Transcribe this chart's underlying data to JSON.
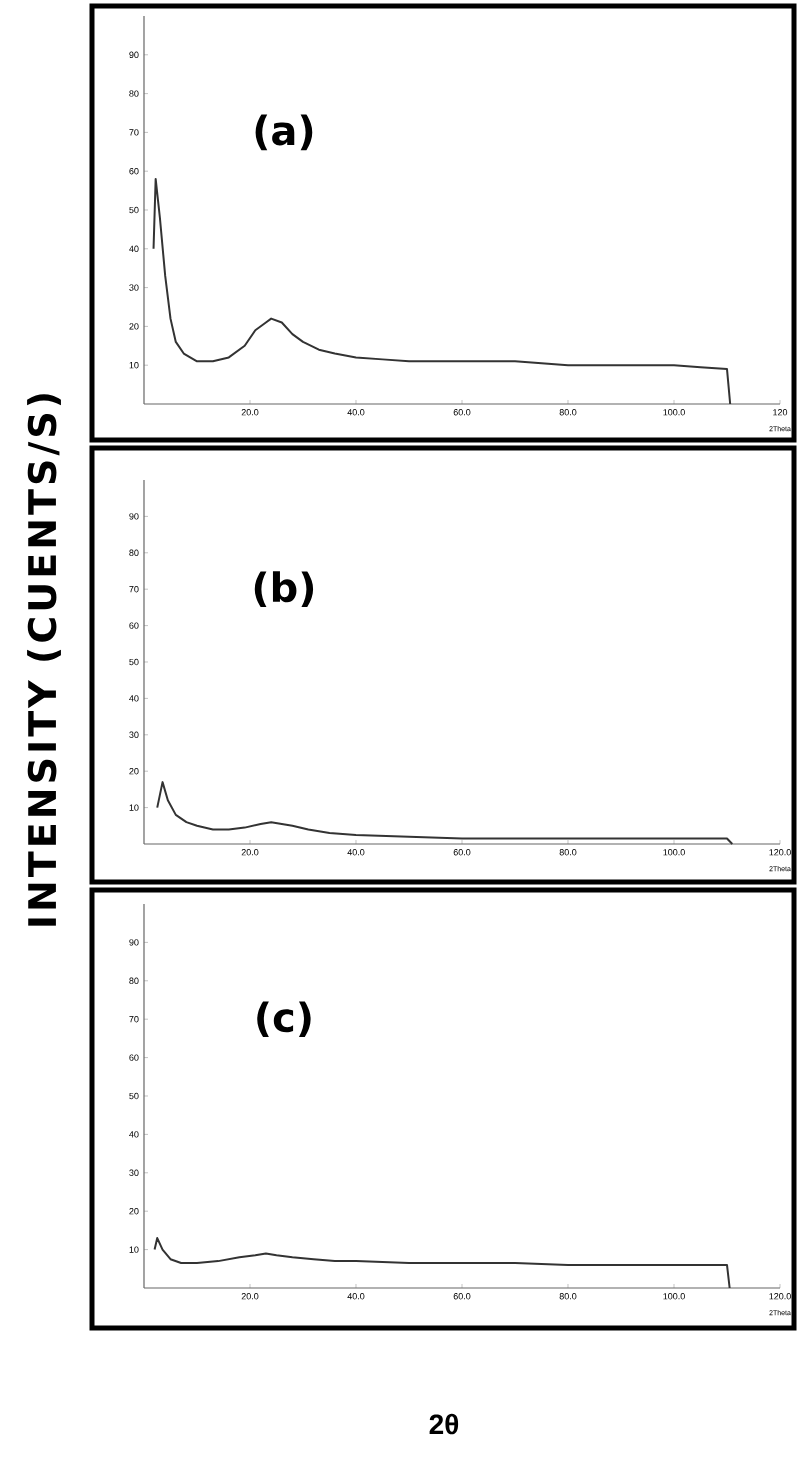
{
  "chart_data": [
    {
      "type": "line",
      "ylabel": "INTENSITY (CUENTS/S)",
      "annotations": [
        "(a)",
        "2Theta"
      ],
      "xlim": [
        0,
        120
      ],
      "ylim": [
        0,
        100
      ],
      "xticks": [
        {
          "value": 20,
          "label": "20.0"
        },
        {
          "value": 40,
          "label": "40.0"
        },
        {
          "value": 60,
          "label": "60.0"
        },
        {
          "value": 80,
          "label": "80.0"
        },
        {
          "value": 100,
          "label": "100.0"
        },
        {
          "value": 120,
          "label": "120"
        }
      ],
      "yticks": [
        10,
        20,
        30,
        40,
        50,
        60,
        70,
        80,
        90
      ],
      "color": "#333333",
      "x": [
        1.8,
        2.2,
        3,
        4,
        5,
        6,
        7.5,
        10,
        13,
        16,
        19,
        21,
        23,
        24,
        26,
        28,
        30,
        33,
        36,
        40,
        45,
        50,
        55,
        60,
        65,
        70,
        75,
        80,
        85,
        90,
        95,
        100,
        105,
        110,
        110.6
      ],
      "values": [
        40,
        58,
        48,
        33,
        22,
        16,
        13,
        11,
        11,
        12,
        15,
        19,
        21,
        22,
        21,
        18,
        16,
        14,
        13,
        12,
        11.5,
        11,
        11,
        11,
        11,
        11,
        10.5,
        10,
        10,
        10,
        10,
        10,
        9.5,
        9,
        0
      ]
    },
    {
      "type": "line",
      "annotations": [
        "(b)",
        "2Theta"
      ],
      "xlim": [
        0,
        120
      ],
      "ylim": [
        0,
        100
      ],
      "xticks": [
        {
          "value": 20,
          "label": "20.0"
        },
        {
          "value": 40,
          "label": "40.0"
        },
        {
          "value": 60,
          "label": "60.0"
        },
        {
          "value": 80,
          "label": "80.0"
        },
        {
          "value": 100,
          "label": "100.0"
        },
        {
          "value": 120,
          "label": "120.0"
        }
      ],
      "yticks": [
        10,
        20,
        30,
        40,
        50,
        60,
        70,
        80,
        90
      ],
      "color": "#333333",
      "x": [
        2.5,
        3.5,
        4.5,
        6,
        8,
        10,
        13,
        16,
        19,
        22,
        24,
        26,
        28,
        31,
        35,
        40,
        50,
        60,
        70,
        80,
        90,
        100,
        105,
        110,
        111
      ],
      "values": [
        10,
        17,
        12,
        8,
        6,
        5,
        4,
        4,
        4.5,
        5.5,
        6,
        5.5,
        5,
        4,
        3,
        2.5,
        2,
        1.5,
        1.5,
        1.5,
        1.5,
        1.5,
        1.5,
        1.5,
        0
      ]
    },
    {
      "type": "line",
      "xlabel": "2θ",
      "annotations": [
        "(c)",
        "2Theta"
      ],
      "xlim": [
        0,
        120
      ],
      "ylim": [
        0,
        100
      ],
      "xticks": [
        {
          "value": 20,
          "label": "20.0"
        },
        {
          "value": 40,
          "label": "40.0"
        },
        {
          "value": 60,
          "label": "60.0"
        },
        {
          "value": 80,
          "label": "80.0"
        },
        {
          "value": 100,
          "label": "100.0"
        },
        {
          "value": 120,
          "label": "120.0"
        }
      ],
      "yticks": [
        10,
        20,
        30,
        40,
        50,
        60,
        70,
        80,
        90
      ],
      "color": "#333333",
      "x": [
        2,
        2.5,
        3.5,
        5,
        7,
        10,
        14,
        18,
        21,
        23,
        25,
        28,
        32,
        36,
        40,
        50,
        60,
        70,
        80,
        90,
        100,
        105,
        110,
        110.5
      ],
      "values": [
        10,
        13,
        10,
        7.5,
        6.5,
        6.5,
        7,
        8,
        8.5,
        9,
        8.5,
        8,
        7.5,
        7,
        7,
        6.5,
        6.5,
        6.5,
        6,
        6,
        6,
        6,
        6,
        0
      ]
    }
  ]
}
